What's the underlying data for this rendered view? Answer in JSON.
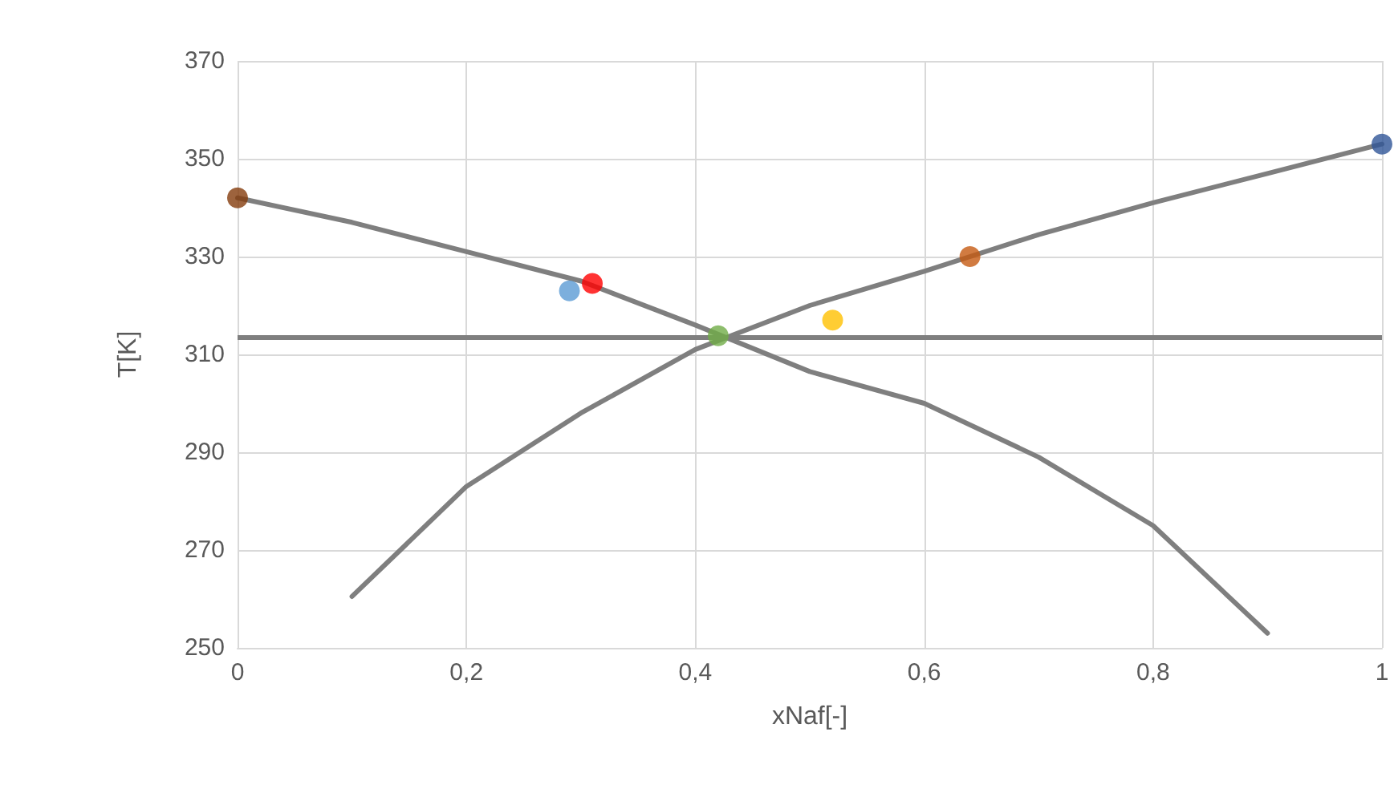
{
  "chart_data": {
    "type": "line",
    "xlabel": "xNaf[-]",
    "ylabel": "T[K]",
    "xlim": [
      0,
      1
    ],
    "ylim": [
      250,
      370
    ],
    "xticks": [
      0,
      {
        "value": 0.2,
        "label": "0,2"
      },
      {
        "value": 0.4,
        "label": "0,4"
      },
      {
        "value": 0.6,
        "label": "0,6"
      },
      {
        "value": 0.8,
        "label": "0,8"
      },
      1
    ],
    "yticks": [
      250,
      270,
      290,
      310,
      330,
      350,
      370
    ],
    "grid": true,
    "marker": "none",
    "line_style": "solid",
    "series": [
      {
        "color": "#7f7f7f",
        "x": [
          0,
          0.1,
          0.2,
          0.3,
          0.4,
          0.5,
          0.6,
          0.7,
          0.8,
          0.9
        ],
        "values": [
          342,
          337,
          331,
          325,
          316,
          306.5,
          300,
          289,
          275,
          253
        ]
      },
      {
        "color": "#7f7f7f",
        "x": [
          0.1,
          0.2,
          0.3,
          0.4,
          0.5,
          0.6,
          0.7,
          0.8,
          0.9,
          1
        ],
        "values": [
          260.5,
          283,
          298,
          311,
          320,
          327,
          334.5,
          341,
          347,
          353
        ]
      },
      {
        "type": "scatter",
        "marker": "circle",
        "color": "#843c0c",
        "x": [
          0
        ],
        "values": [
          342
        ]
      },
      {
        "type": "scatter",
        "marker": "circle",
        "color": "#5b9bd5",
        "x": [
          0.29
        ],
        "values": [
          323
        ]
      },
      {
        "type": "scatter",
        "marker": "circle",
        "color": "#ff0000",
        "x": [
          0.31
        ],
        "values": [
          324.5
        ]
      },
      {
        "type": "scatter",
        "marker": "circle",
        "color": "#70ad47",
        "x": [
          0.42
        ],
        "values": [
          313.8
        ]
      },
      {
        "type": "scatter",
        "marker": "circle",
        "color": "#ffc000",
        "x": [
          0.52
        ],
        "values": [
          317
        ]
      },
      {
        "type": "scatter",
        "marker": "circle",
        "color": "#c55a11",
        "x": [
          0.64
        ],
        "values": [
          330
        ]
      },
      {
        "type": "scatter",
        "marker": "circle",
        "color": "#2f5597",
        "x": [
          1
        ],
        "values": [
          353
        ]
      }
    ],
    "ref_lines": [
      {
        "axis": "y",
        "value": 313.6,
        "color": "#7f7f7f"
      }
    ]
  }
}
